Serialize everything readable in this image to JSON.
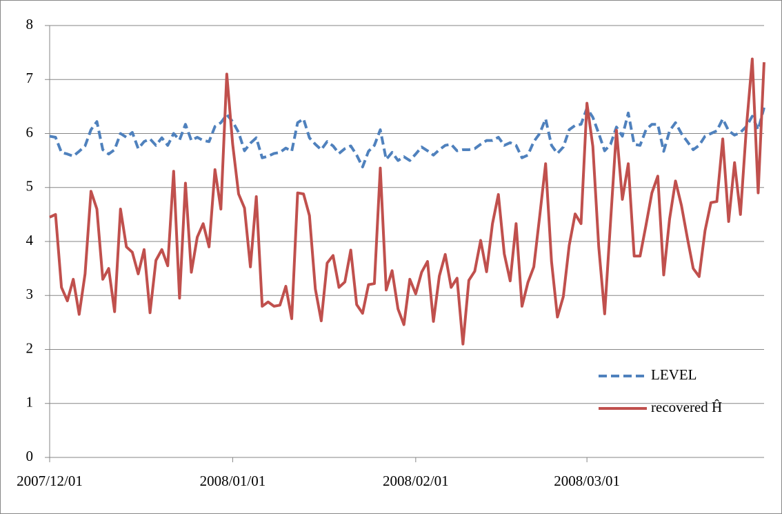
{
  "chart_data": {
    "type": "line",
    "x": [
      "2007/12/01",
      "2007/12/02",
      "2007/12/03",
      "2007/12/04",
      "2007/12/05",
      "2007/12/06",
      "2007/12/07",
      "2007/12/08",
      "2007/12/09",
      "2007/12/10",
      "2007/12/11",
      "2007/12/12",
      "2007/12/13",
      "2007/12/14",
      "2007/12/15",
      "2007/12/16",
      "2007/12/17",
      "2007/12/18",
      "2007/12/19",
      "2007/12/20",
      "2007/12/21",
      "2007/12/22",
      "2007/12/23",
      "2007/12/24",
      "2007/12/25",
      "2007/12/26",
      "2007/12/27",
      "2007/12/28",
      "2007/12/29",
      "2007/12/30",
      "2007/12/31",
      "2008/01/01",
      "2008/01/02",
      "2008/01/03",
      "2008/01/04",
      "2008/01/05",
      "2008/01/06",
      "2008/01/07",
      "2008/01/08",
      "2008/01/09",
      "2008/01/10",
      "2008/01/11",
      "2008/01/12",
      "2008/01/13",
      "2008/01/14",
      "2008/01/15",
      "2008/01/16",
      "2008/01/17",
      "2008/01/18",
      "2008/01/19",
      "2008/01/20",
      "2008/01/21",
      "2008/01/22",
      "2008/01/23",
      "2008/01/24",
      "2008/01/25",
      "2008/01/26",
      "2008/01/27",
      "2008/01/28",
      "2008/01/29",
      "2008/01/30",
      "2008/01/31",
      "2008/02/01",
      "2008/02/02",
      "2008/02/03",
      "2008/02/04",
      "2008/02/05",
      "2008/02/06",
      "2008/02/07",
      "2008/02/08",
      "2008/02/09",
      "2008/02/10",
      "2008/02/11",
      "2008/02/12",
      "2008/02/13",
      "2008/02/14",
      "2008/02/15",
      "2008/02/16",
      "2008/02/17",
      "2008/02/18",
      "2008/02/19",
      "2008/02/20",
      "2008/02/21",
      "2008/02/22",
      "2008/02/23",
      "2008/02/24",
      "2008/02/25",
      "2008/02/26",
      "2008/02/27",
      "2008/02/28",
      "2008/02/29",
      "2008/03/01",
      "2008/03/02",
      "2008/03/03",
      "2008/03/04",
      "2008/03/05",
      "2008/03/06",
      "2008/03/07",
      "2008/03/08",
      "2008/03/09",
      "2008/03/10",
      "2008/03/11",
      "2008/03/12",
      "2008/03/13",
      "2008/03/14",
      "2008/03/15",
      "2008/03/16",
      "2008/03/17",
      "2008/03/18",
      "2008/03/19",
      "2008/03/20",
      "2008/03/21",
      "2008/03/22",
      "2008/03/23",
      "2008/03/24",
      "2008/03/25",
      "2008/03/26",
      "2008/03/27",
      "2008/03/28",
      "2008/03/29",
      "2008/03/30",
      "2008/03/31"
    ],
    "series": [
      {
        "name": "LEVEL",
        "color": "#4f81bd",
        "dash": true,
        "values": [
          5.95,
          5.93,
          5.65,
          5.62,
          5.58,
          5.67,
          5.77,
          6.07,
          6.22,
          5.7,
          5.62,
          5.7,
          6.0,
          5.93,
          6.02,
          5.72,
          5.85,
          5.9,
          5.78,
          5.92,
          5.78,
          6.0,
          5.88,
          6.17,
          5.87,
          5.93,
          5.87,
          5.85,
          6.13,
          6.2,
          6.35,
          6.22,
          6.02,
          5.68,
          5.82,
          5.92,
          5.55,
          5.58,
          5.63,
          5.65,
          5.73,
          5.67,
          6.2,
          6.27,
          5.92,
          5.8,
          5.7,
          5.85,
          5.77,
          5.63,
          5.72,
          5.77,
          5.6,
          5.38,
          5.67,
          5.78,
          6.07,
          5.52,
          5.65,
          5.5,
          5.57,
          5.5,
          5.62,
          5.75,
          5.68,
          5.6,
          5.7,
          5.78,
          5.8,
          5.68,
          5.7,
          5.7,
          5.72,
          5.8,
          5.87,
          5.87,
          5.93,
          5.78,
          5.83,
          5.78,
          5.55,
          5.6,
          5.85,
          6.0,
          6.27,
          5.78,
          5.63,
          5.75,
          6.07,
          6.15,
          6.17,
          6.47,
          6.3,
          6.0,
          5.68,
          5.8,
          6.12,
          5.95,
          6.38,
          5.8,
          5.78,
          6.07,
          6.17,
          6.17,
          5.67,
          6.05,
          6.2,
          6.0,
          5.85,
          5.7,
          5.78,
          5.95,
          6.0,
          6.05,
          6.27,
          6.05,
          5.97,
          6.02,
          6.13,
          6.32,
          6.07,
          6.48
        ]
      },
      {
        "name": "recovered Ĥ",
        "color": "#c0504d",
        "dash": false,
        "values": [
          4.45,
          4.5,
          3.15,
          2.9,
          3.3,
          2.65,
          3.4,
          4.93,
          4.6,
          3.3,
          3.5,
          2.7,
          4.6,
          3.9,
          3.8,
          3.4,
          3.85,
          2.68,
          3.65,
          3.85,
          3.55,
          5.3,
          2.95,
          5.08,
          3.43,
          4.08,
          4.33,
          3.9,
          5.33,
          4.6,
          7.1,
          5.8,
          4.88,
          4.62,
          3.53,
          4.83,
          2.8,
          2.88,
          2.8,
          2.82,
          3.17,
          2.57,
          4.9,
          4.88,
          4.48,
          3.12,
          2.53,
          3.6,
          3.74,
          3.15,
          3.25,
          3.84,
          2.83,
          2.67,
          3.2,
          3.22,
          5.36,
          3.1,
          3.46,
          2.75,
          2.46,
          3.3,
          3.03,
          3.43,
          3.63,
          2.52,
          3.36,
          3.76,
          3.15,
          3.32,
          2.1,
          3.28,
          3.45,
          4.02,
          3.44,
          4.33,
          4.87,
          3.77,
          3.27,
          4.33,
          2.8,
          3.24,
          3.53,
          4.47,
          5.44,
          3.63,
          2.6,
          2.98,
          3.93,
          4.51,
          4.33,
          6.56,
          5.76,
          3.9,
          2.66,
          4.37,
          6.06,
          4.78,
          5.44,
          3.73,
          3.73,
          4.3,
          4.9,
          5.21,
          3.38,
          4.42,
          5.12,
          4.67,
          4.07,
          3.5,
          3.35,
          4.2,
          4.72,
          4.74,
          5.9,
          4.37,
          5.46,
          4.5,
          6.1,
          7.38,
          4.9,
          7.32
        ]
      }
    ],
    "xlim": [
      "2007/12/01",
      "2008/03/31"
    ],
    "xticks": [
      "2007/12/01",
      "2008/01/01",
      "2008/02/01",
      "2008/03/01"
    ],
    "ylim": [
      0,
      8
    ],
    "yticks": [
      0,
      1,
      2,
      3,
      4,
      5,
      6,
      7,
      8
    ],
    "grid": true,
    "legend": "lower right"
  }
}
